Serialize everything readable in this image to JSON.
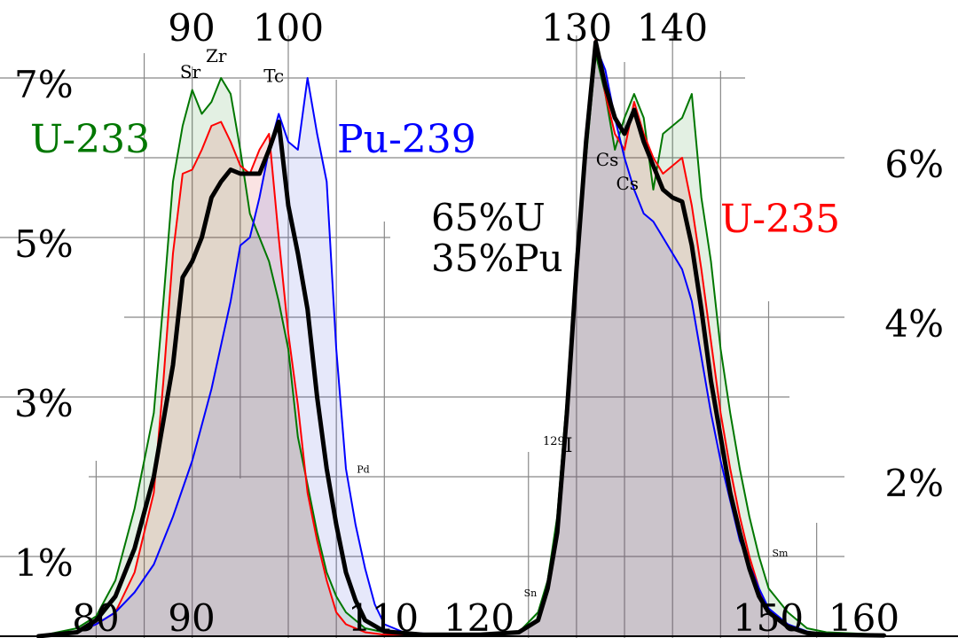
{
  "chart_data": {
    "type": "area",
    "title": "",
    "xlabel": "",
    "ylabel": "",
    "xlim": [
      73,
      162
    ],
    "ylim": [
      0,
      7.8
    ],
    "grid": true,
    "x_ticks_bottom": [
      "80",
      "90",
      "110",
      "120",
      "150",
      "160"
    ],
    "x_ticks_top": [
      "90",
      "100",
      "130",
      "140"
    ],
    "y_ticks_left": [
      "1%",
      "3%",
      "5%",
      "7%"
    ],
    "y_ticks_right": [
      "2%",
      "4%",
      "6%"
    ],
    "series": [
      {
        "name": "U-233",
        "color": "#007700",
        "fill": "rgba(40,140,40,0.13)",
        "points": [
          [
            74,
            0
          ],
          [
            78,
            0.1
          ],
          [
            80,
            0.25
          ],
          [
            82,
            0.7
          ],
          [
            84,
            1.6
          ],
          [
            86,
            2.8
          ],
          [
            87,
            4.2
          ],
          [
            88,
            5.7
          ],
          [
            89,
            6.4
          ],
          [
            90,
            6.85
          ],
          [
            91,
            6.55
          ],
          [
            92,
            6.7
          ],
          [
            93,
            7.0
          ],
          [
            94,
            6.8
          ],
          [
            95,
            6.1
          ],
          [
            96,
            5.3
          ],
          [
            97,
            5.0
          ],
          [
            98,
            4.7
          ],
          [
            99,
            4.2
          ],
          [
            100,
            3.6
          ],
          [
            101,
            2.5
          ],
          [
            102,
            1.9
          ],
          [
            103,
            1.3
          ],
          [
            104,
            0.8
          ],
          [
            105,
            0.5
          ],
          [
            106,
            0.3
          ],
          [
            108,
            0.1
          ],
          [
            110,
            0.05
          ],
          [
            114,
            0.02
          ],
          [
            120,
            0.02
          ],
          [
            124,
            0.05
          ],
          [
            126,
            0.3
          ],
          [
            127,
            0.7
          ],
          [
            128,
            1.5
          ],
          [
            129,
            3.0
          ],
          [
            130,
            4.8
          ],
          [
            131,
            6.0
          ],
          [
            132,
            7.3
          ],
          [
            133,
            6.8
          ],
          [
            134,
            6.1
          ],
          [
            135,
            6.5
          ],
          [
            136,
            6.8
          ],
          [
            137,
            6.5
          ],
          [
            138,
            5.6
          ],
          [
            139,
            6.3
          ],
          [
            140,
            6.4
          ],
          [
            141,
            6.5
          ],
          [
            142,
            6.8
          ],
          [
            143,
            5.5
          ],
          [
            144,
            4.7
          ],
          [
            145,
            3.6
          ],
          [
            146,
            2.8
          ],
          [
            147,
            2.1
          ],
          [
            148,
            1.5
          ],
          [
            149,
            1.0
          ],
          [
            150,
            0.6
          ],
          [
            152,
            0.3
          ],
          [
            154,
            0.1
          ],
          [
            156,
            0.05
          ],
          [
            162,
            0.02
          ]
        ]
      },
      {
        "name": "U-235",
        "color": "#ff0000",
        "fill": "rgba(220,40,40,0.13)",
        "points": [
          [
            74,
            0
          ],
          [
            78,
            0.05
          ],
          [
            80,
            0.15
          ],
          [
            82,
            0.3
          ],
          [
            84,
            0.8
          ],
          [
            86,
            1.8
          ],
          [
            87,
            3.2
          ],
          [
            88,
            4.8
          ],
          [
            89,
            5.8
          ],
          [
            90,
            5.85
          ],
          [
            91,
            6.1
          ],
          [
            92,
            6.4
          ],
          [
            93,
            6.45
          ],
          [
            94,
            6.2
          ],
          [
            95,
            5.9
          ],
          [
            96,
            5.8
          ],
          [
            97,
            6.1
          ],
          [
            98,
            6.3
          ],
          [
            99,
            5.0
          ],
          [
            100,
            3.8
          ],
          [
            101,
            2.9
          ],
          [
            102,
            1.8
          ],
          [
            103,
            1.2
          ],
          [
            104,
            0.7
          ],
          [
            105,
            0.3
          ],
          [
            106,
            0.15
          ],
          [
            108,
            0.05
          ],
          [
            110,
            0.02
          ],
          [
            120,
            0.02
          ],
          [
            124,
            0.05
          ],
          [
            126,
            0.2
          ],
          [
            127,
            0.6
          ],
          [
            128,
            1.3
          ],
          [
            129,
            2.7
          ],
          [
            130,
            4.5
          ],
          [
            131,
            6.2
          ],
          [
            132,
            7.5
          ],
          [
            133,
            6.8
          ],
          [
            134,
            6.3
          ],
          [
            135,
            6.1
          ],
          [
            136,
            6.7
          ],
          [
            137,
            6.3
          ],
          [
            138,
            6.0
          ],
          [
            139,
            5.8
          ],
          [
            140,
            5.9
          ],
          [
            141,
            6.0
          ],
          [
            142,
            5.4
          ],
          [
            143,
            4.6
          ],
          [
            144,
            3.7
          ],
          [
            145,
            2.8
          ],
          [
            146,
            2.1
          ],
          [
            147,
            1.5
          ],
          [
            148,
            1.0
          ],
          [
            149,
            0.6
          ],
          [
            150,
            0.3
          ],
          [
            152,
            0.15
          ],
          [
            154,
            0.05
          ],
          [
            156,
            0.02
          ],
          [
            162,
            0.01
          ]
        ]
      },
      {
        "name": "Pu-239",
        "color": "#0000ff",
        "fill": "rgba(60,80,220,0.13)",
        "points": [
          [
            74,
            0
          ],
          [
            78,
            0.05
          ],
          [
            80,
            0.15
          ],
          [
            82,
            0.3
          ],
          [
            84,
            0.55
          ],
          [
            86,
            0.9
          ],
          [
            88,
            1.5
          ],
          [
            90,
            2.2
          ],
          [
            92,
            3.1
          ],
          [
            94,
            4.2
          ],
          [
            95,
            4.9
          ],
          [
            96,
            5.0
          ],
          [
            97,
            5.5
          ],
          [
            98,
            6.1
          ],
          [
            99,
            6.55
          ],
          [
            100,
            6.2
          ],
          [
            101,
            6.1
          ],
          [
            102,
            7.0
          ],
          [
            103,
            6.3
          ],
          [
            104,
            5.7
          ],
          [
            105,
            3.6
          ],
          [
            106,
            2.1
          ],
          [
            107,
            1.4
          ],
          [
            108,
            0.85
          ],
          [
            109,
            0.4
          ],
          [
            110,
            0.15
          ],
          [
            112,
            0.05
          ],
          [
            116,
            0.02
          ],
          [
            120,
            0.02
          ],
          [
            124,
            0.04
          ],
          [
            126,
            0.2
          ],
          [
            127,
            0.6
          ],
          [
            128,
            1.3
          ],
          [
            129,
            2.8
          ],
          [
            130,
            4.6
          ],
          [
            131,
            6.3
          ],
          [
            132,
            7.4
          ],
          [
            133,
            7.1
          ],
          [
            134,
            6.5
          ],
          [
            135,
            6.0
          ],
          [
            136,
            5.6
          ],
          [
            137,
            5.3
          ],
          [
            138,
            5.2
          ],
          [
            139,
            5.0
          ],
          [
            140,
            4.8
          ],
          [
            141,
            4.6
          ],
          [
            142,
            4.2
          ],
          [
            143,
            3.5
          ],
          [
            144,
            2.8
          ],
          [
            145,
            2.2
          ],
          [
            146,
            1.7
          ],
          [
            147,
            1.2
          ],
          [
            148,
            0.9
          ],
          [
            149,
            0.6
          ],
          [
            150,
            0.35
          ],
          [
            152,
            0.15
          ],
          [
            154,
            0.06
          ],
          [
            156,
            0.02
          ],
          [
            162,
            0.01
          ]
        ]
      },
      {
        "name": "65%U 35%Pu",
        "color": "#000000",
        "fill": "none",
        "points": [
          [
            74,
            0
          ],
          [
            78,
            0.05
          ],
          [
            80,
            0.2
          ],
          [
            82,
            0.5
          ],
          [
            84,
            1.1
          ],
          [
            86,
            2.0
          ],
          [
            88,
            3.4
          ],
          [
            89,
            4.5
          ],
          [
            90,
            4.7
          ],
          [
            91,
            5.0
          ],
          [
            92,
            5.5
          ],
          [
            93,
            5.7
          ],
          [
            94,
            5.85
          ],
          [
            95,
            5.8
          ],
          [
            96,
            5.8
          ],
          [
            97,
            5.8
          ],
          [
            98,
            6.1
          ],
          [
            99,
            6.45
          ],
          [
            100,
            5.4
          ],
          [
            101,
            4.8
          ],
          [
            102,
            4.1
          ],
          [
            103,
            3.0
          ],
          [
            104,
            2.1
          ],
          [
            105,
            1.4
          ],
          [
            106,
            0.8
          ],
          [
            107,
            0.45
          ],
          [
            108,
            0.2
          ],
          [
            110,
            0.06
          ],
          [
            114,
            0.02
          ],
          [
            120,
            0.02
          ],
          [
            124,
            0.05
          ],
          [
            126,
            0.2
          ],
          [
            127,
            0.6
          ],
          [
            128,
            1.3
          ],
          [
            129,
            2.8
          ],
          [
            130,
            4.6
          ],
          [
            131,
            6.2
          ],
          [
            132,
            7.45
          ],
          [
            133,
            6.9
          ],
          [
            134,
            6.5
          ],
          [
            135,
            6.3
          ],
          [
            136,
            6.6
          ],
          [
            137,
            6.2
          ],
          [
            138,
            5.9
          ],
          [
            139,
            5.6
          ],
          [
            140,
            5.5
          ],
          [
            141,
            5.45
          ],
          [
            142,
            4.9
          ],
          [
            143,
            4.1
          ],
          [
            144,
            3.2
          ],
          [
            145,
            2.5
          ],
          [
            146,
            1.8
          ],
          [
            147,
            1.3
          ],
          [
            148,
            0.85
          ],
          [
            149,
            0.5
          ],
          [
            150,
            0.3
          ],
          [
            152,
            0.12
          ],
          [
            154,
            0.04
          ],
          [
            156,
            0.02
          ],
          [
            162,
            0.01
          ]
        ]
      }
    ],
    "annotations": [
      {
        "text": "Sr",
        "x": 89.8,
        "y": 7.0,
        "size": "small"
      },
      {
        "text": "Zr",
        "x": 92.5,
        "y": 7.2,
        "size": "small"
      },
      {
        "text": "Tc",
        "x": 98.5,
        "y": 6.95,
        "size": "small"
      },
      {
        "text": "Pd",
        "x": 107.8,
        "y": 2.05,
        "size": "tiny"
      },
      {
        "text": "Sn",
        "x": 125.2,
        "y": 0.5,
        "size": "tiny"
      },
      {
        "text": "Cs",
        "x": 133.2,
        "y": 5.9,
        "size": "small"
      },
      {
        "text": "Cs",
        "x": 135.3,
        "y": 5.6,
        "size": "small"
      },
      {
        "text": "Sm",
        "x": 151.2,
        "y": 1.0,
        "size": "tiny"
      }
    ],
    "iodine_label": {
      "sup": "129",
      "text": "I"
    }
  },
  "labels": {
    "u233": "U-233",
    "pu239": "Pu-239",
    "u235": "U-235",
    "mix_line1": "65%U",
    "mix_line2": "35%Pu"
  },
  "colors": {
    "u233": "#007700",
    "pu239": "#0000ff",
    "u235": "#ff0000",
    "mix": "#000000",
    "grid": "#888888"
  }
}
